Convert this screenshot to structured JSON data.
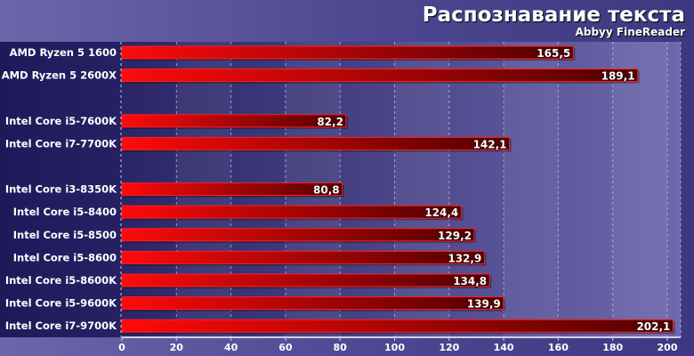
{
  "chart_data": {
    "type": "bar",
    "orientation": "horizontal",
    "title": "Распознавание текста",
    "subtitle": "Abbyy FineReader",
    "xlabel": "",
    "ylabel": "",
    "xlim": [
      0,
      200
    ],
    "xticks": [
      0,
      20,
      40,
      60,
      80,
      100,
      120,
      140,
      160,
      180,
      200
    ],
    "grid": true,
    "groups": [
      [
        {
          "label": "AMD Ryzen 5 1600",
          "value": 165.5,
          "text": "165,5"
        },
        {
          "label": "AMD Ryzen 5 2600X",
          "value": 189.1,
          "text": "189,1"
        }
      ],
      [
        {
          "label": "Intel Core i5-7600K",
          "value": 82.2,
          "text": "82,2"
        },
        {
          "label": "Intel Core i7-7700K",
          "value": 142.1,
          "text": "142,1"
        }
      ],
      [
        {
          "label": "Intel Core i3-8350K",
          "value": 80.8,
          "text": "80,8"
        },
        {
          "label": "Intel Core i5-8400",
          "value": 124.4,
          "text": "124,4"
        },
        {
          "label": "Intel Core i5-8500",
          "value": 129.2,
          "text": "129,2"
        },
        {
          "label": "Intel Core i5-8600",
          "value": 132.9,
          "text": "132,9"
        },
        {
          "label": "Intel Core i5-8600K",
          "value": 134.8,
          "text": "134,8"
        },
        {
          "label": "Intel Core i5-9600K",
          "value": 139.9,
          "text": "139,9"
        },
        {
          "label": "Intel Core i7-9700K",
          "value": 202.1,
          "text": "202,1"
        }
      ]
    ],
    "colors": {
      "bar_start": "#ff0a0a",
      "bar_end": "#500000",
      "label_panel": "#1f1b5c"
    }
  }
}
